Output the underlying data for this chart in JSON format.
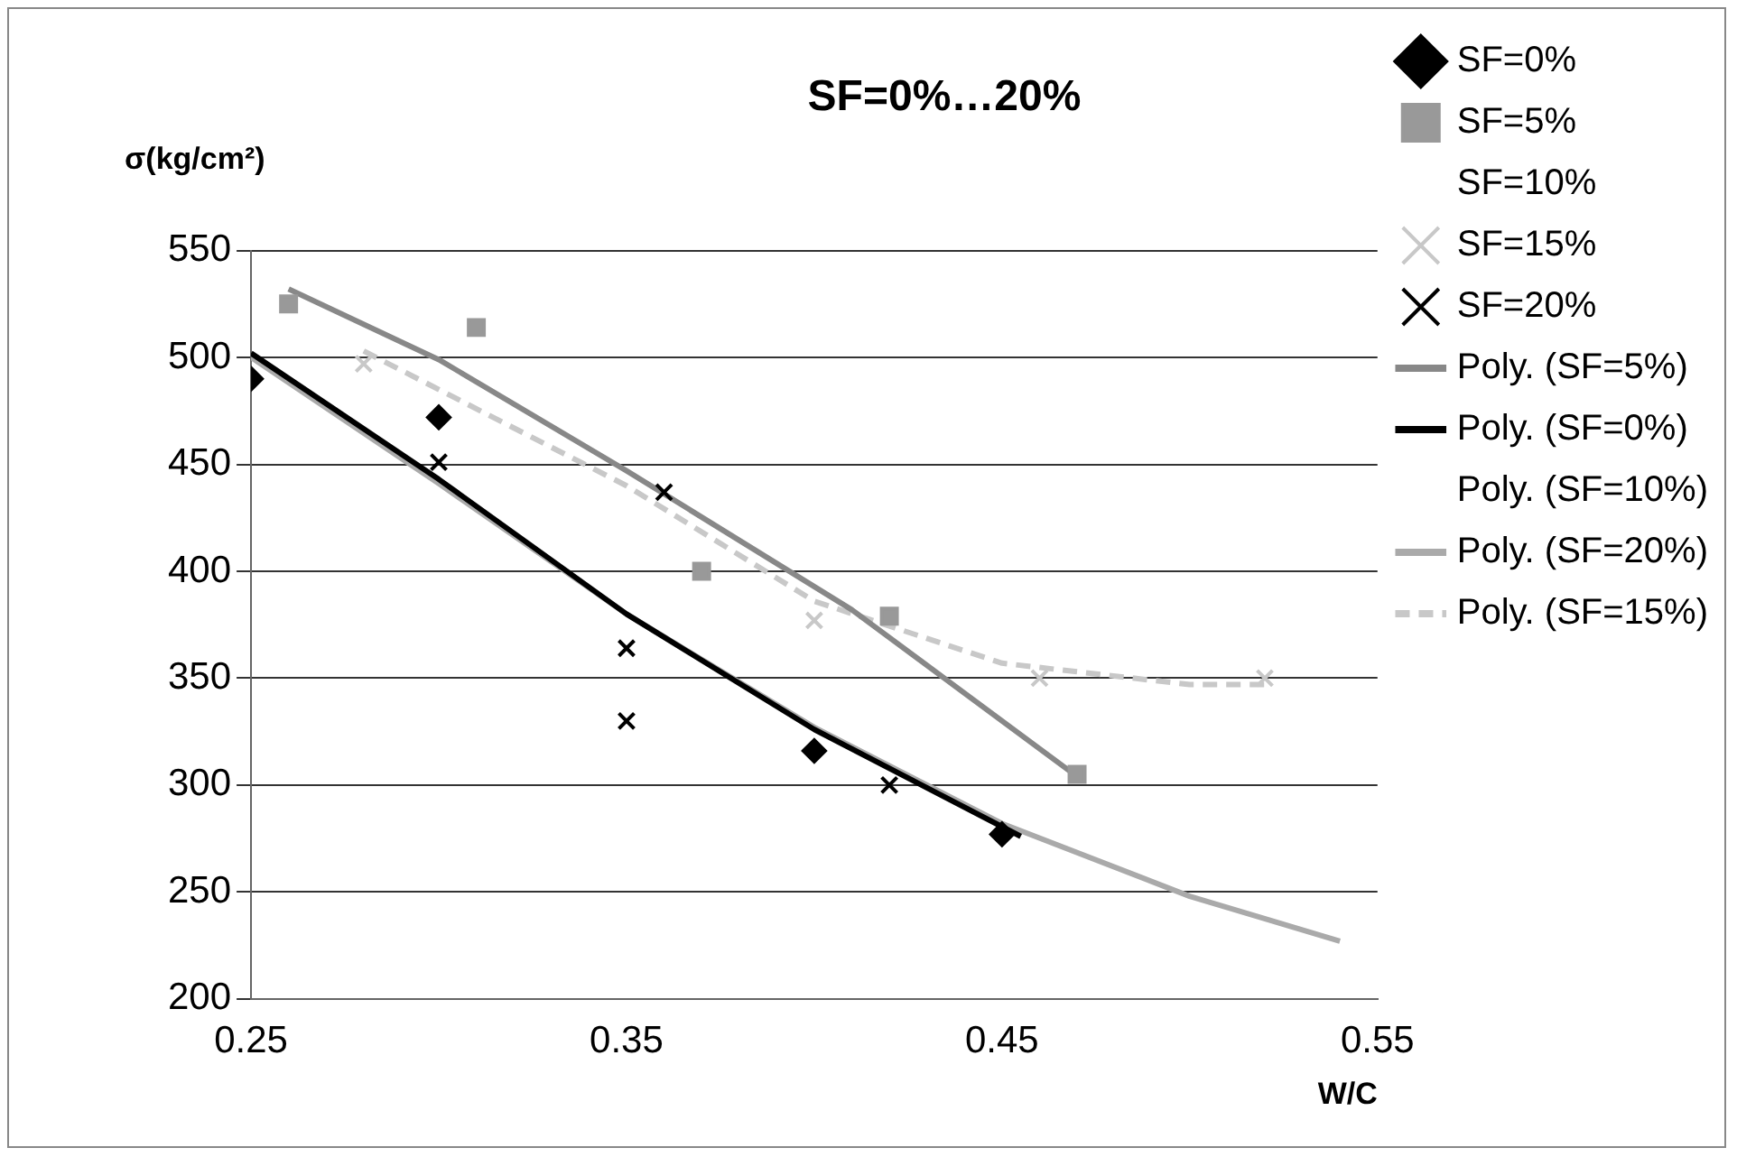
{
  "chart_data": {
    "type": "scatter",
    "title": "SF=0%…20%",
    "xlabel": "W/C",
    "ylabel": "σ(kg/cm²)",
    "xlim": [
      0.25,
      0.55
    ],
    "xticks": [
      0.25,
      0.35,
      0.45,
      0.55
    ],
    "ylim": [
      200,
      550
    ],
    "yticks": [
      200,
      250,
      300,
      350,
      400,
      450,
      500,
      550
    ],
    "grid": "y",
    "legend": "right",
    "series": [
      {
        "name": "SF=0%",
        "color": "#000000",
        "marker": "diamond",
        "x": [
          0.25,
          0.3,
          0.4,
          0.45
        ],
        "values": [
          490,
          472,
          316,
          277
        ]
      },
      {
        "name": "SF=5%",
        "color": "#999999",
        "marker": "square",
        "x": [
          0.26,
          0.31,
          0.37,
          0.42,
          0.47
        ],
        "values": [
          525,
          514,
          400,
          379,
          305
        ]
      },
      {
        "name": "SF=10%",
        "marker": "none"
      },
      {
        "name": "SF=15%",
        "color": "#c8c8c8",
        "marker": "cross",
        "x": [
          0.28,
          0.4,
          0.46,
          0.52
        ],
        "values": [
          497,
          377,
          350,
          350
        ]
      },
      {
        "name": "SF=20%",
        "color": "#000000",
        "marker": "cross",
        "x": [
          0.3,
          0.35,
          0.35,
          0.36,
          0.42
        ],
        "values": [
          451,
          364,
          330,
          437,
          300
        ]
      },
      {
        "name": "Poly. (SF=5%)",
        "type": "line",
        "color": "#888888",
        "line_style": "solid",
        "x": [
          0.26,
          0.3,
          0.35,
          0.41,
          0.47
        ],
        "values": [
          532,
          499,
          447,
          382,
          304
        ]
      },
      {
        "name": "Poly. (SF=0%)",
        "type": "line",
        "color": "#000000",
        "line_style": "solid",
        "x": [
          0.25,
          0.3,
          0.35,
          0.4,
          0.455
        ],
        "values": [
          502,
          443,
          380,
          326,
          276
        ]
      },
      {
        "name": "Poly. (SF=10%)",
        "type": "line",
        "line_style": "none"
      },
      {
        "name": "Poly. (SF=20%)",
        "type": "line",
        "color": "#aaaaaa",
        "line_style": "solid",
        "x": [
          0.25,
          0.3,
          0.35,
          0.4,
          0.45,
          0.5,
          0.54
        ],
        "values": [
          500,
          441,
          380,
          327,
          282,
          248,
          227
        ]
      },
      {
        "name": "Poly. (SF=15%)",
        "type": "line",
        "color": "#c8c8c8",
        "line_style": "dashed",
        "x": [
          0.28,
          0.3,
          0.35,
          0.4,
          0.45,
          0.5,
          0.52
        ],
        "values": [
          503,
          485,
          440,
          386,
          357,
          347,
          347
        ]
      }
    ]
  }
}
